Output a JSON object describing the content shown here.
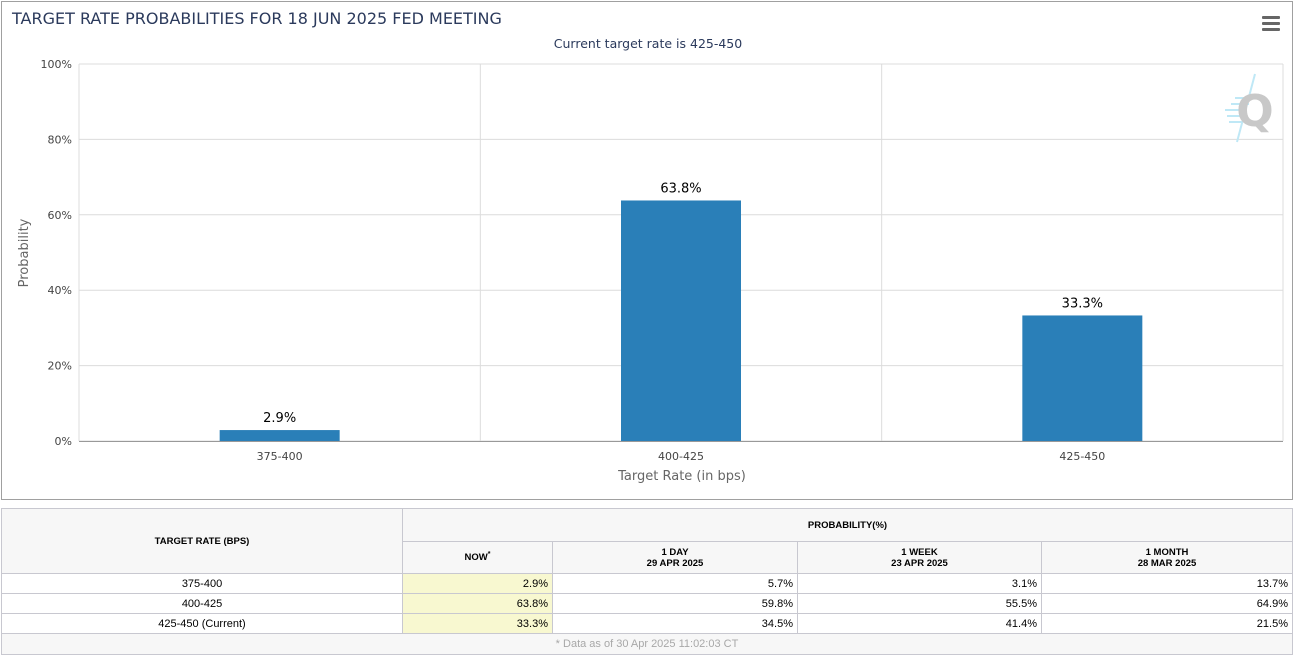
{
  "chart_data": {
    "type": "bar",
    "title": "TARGET RATE PROBABILITIES FOR 18 JUN 2025 FED MEETING",
    "subtitle": "Current target rate is 425-450",
    "xlabel": "Target Rate (in bps)",
    "ylabel": "Probability",
    "categories": [
      "375-400",
      "400-425",
      "425-450"
    ],
    "values": [
      2.9,
      63.8,
      33.3
    ],
    "data_labels": [
      "2.9%",
      "63.8%",
      "33.3%"
    ],
    "ylim": [
      0,
      100
    ],
    "yticks": [
      0,
      20,
      40,
      60,
      80,
      100
    ],
    "ytick_labels": [
      "0%",
      "20%",
      "40%",
      "60%",
      "80%",
      "100%"
    ],
    "grid": true,
    "bar_color": "#2a7fb8"
  },
  "watermark": "Q",
  "table": {
    "col_header": "TARGET RATE (BPS)",
    "group_header": "PROBABILITY(%)",
    "columns": [
      {
        "label": "NOW",
        "sup": "*",
        "date": ""
      },
      {
        "label": "1 DAY",
        "date": "29 APR 2025"
      },
      {
        "label": "1 WEEK",
        "date": "23 APR 2025"
      },
      {
        "label": "1 MONTH",
        "date": "28 MAR 2025"
      }
    ],
    "rows": [
      {
        "rate": "375-400",
        "values": [
          "2.9%",
          "5.7%",
          "3.1%",
          "13.7%"
        ]
      },
      {
        "rate": "400-425",
        "values": [
          "63.8%",
          "59.8%",
          "55.5%",
          "64.9%"
        ]
      },
      {
        "rate": "425-450 (Current)",
        "values": [
          "33.3%",
          "34.5%",
          "41.4%",
          "21.5%"
        ]
      }
    ],
    "footnote": "* Data as of 30 Apr 2025 11:02:03 CT"
  }
}
